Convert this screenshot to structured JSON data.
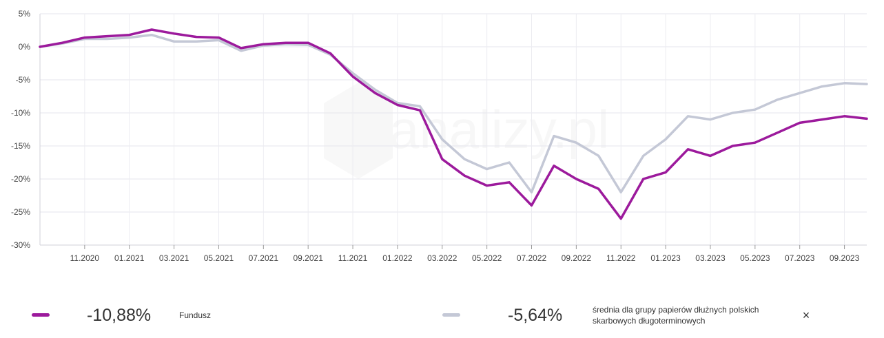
{
  "chart_data": {
    "type": "line",
    "title": "",
    "xlabel": "",
    "ylabel": "",
    "ylim": [
      -30,
      5
    ],
    "y_ticks": [
      5,
      0,
      -5,
      -10,
      -15,
      -20,
      -25,
      -30
    ],
    "y_tick_labels": [
      "5%",
      "0%",
      "-5%",
      "-10%",
      "-15%",
      "-20%",
      "-25%",
      "-30%"
    ],
    "x_tick_labels": [
      "11.2020",
      "01.2021",
      "03.2021",
      "05.2021",
      "07.2021",
      "09.2021",
      "11.2021",
      "01.2022",
      "03.2022",
      "05.2022",
      "07.2022",
      "09.2022",
      "11.2022",
      "01.2023",
      "03.2023",
      "05.2023",
      "07.2023",
      "09.2023"
    ],
    "x_range_months": [
      "2020-09",
      "2023-10"
    ],
    "grid": true,
    "series": [
      {
        "name": "Fundusz",
        "color": "#9c1a9c",
        "points": [
          [
            "2020-09",
            0.0
          ],
          [
            "2020-10",
            0.6
          ],
          [
            "2020-11",
            1.4
          ],
          [
            "2020-12",
            1.6
          ],
          [
            "2021-01",
            1.8
          ],
          [
            "2021-02",
            2.6
          ],
          [
            "2021-03",
            2.0
          ],
          [
            "2021-04",
            1.5
          ],
          [
            "2021-05",
            1.4
          ],
          [
            "2021-06",
            -0.2
          ],
          [
            "2021-07",
            0.4
          ],
          [
            "2021-08",
            0.6
          ],
          [
            "2021-09",
            0.6
          ],
          [
            "2021-10",
            -1.0
          ],
          [
            "2021-11",
            -4.5
          ],
          [
            "2021-12",
            -7.0
          ],
          [
            "2022-01",
            -8.8
          ],
          [
            "2022-02",
            -9.6
          ],
          [
            "2022-03",
            -17.0
          ],
          [
            "2022-04",
            -19.5
          ],
          [
            "2022-05",
            -21.0
          ],
          [
            "2022-06",
            -20.5
          ],
          [
            "2022-07",
            -24.0
          ],
          [
            "2022-08",
            -18.0
          ],
          [
            "2022-09",
            -20.0
          ],
          [
            "2022-10",
            -21.5
          ],
          [
            "2022-11",
            -26.0
          ],
          [
            "2022-12",
            -20.0
          ],
          [
            "2023-01",
            -19.0
          ],
          [
            "2023-02",
            -15.5
          ],
          [
            "2023-03",
            -16.5
          ],
          [
            "2023-04",
            -15.0
          ],
          [
            "2023-05",
            -14.5
          ],
          [
            "2023-06",
            -13.0
          ],
          [
            "2023-07",
            -11.5
          ],
          [
            "2023-08",
            -11.0
          ],
          [
            "2023-09",
            -10.5
          ],
          [
            "2023-10",
            -10.88
          ]
        ]
      },
      {
        "name": "średnia dla grupy papierów dłużnych polskich skarbowych długoterminowych",
        "color": "#c4c8d6",
        "points": [
          [
            "2020-09",
            0.0
          ],
          [
            "2020-10",
            0.5
          ],
          [
            "2020-11",
            1.2
          ],
          [
            "2020-12",
            1.2
          ],
          [
            "2021-01",
            1.4
          ],
          [
            "2021-02",
            1.8
          ],
          [
            "2021-03",
            0.8
          ],
          [
            "2021-04",
            0.8
          ],
          [
            "2021-05",
            1.0
          ],
          [
            "2021-06",
            -0.6
          ],
          [
            "2021-07",
            0.2
          ],
          [
            "2021-08",
            0.4
          ],
          [
            "2021-09",
            0.3
          ],
          [
            "2021-10",
            -1.2
          ],
          [
            "2021-11",
            -4.0
          ],
          [
            "2021-12",
            -6.5
          ],
          [
            "2022-01",
            -8.5
          ],
          [
            "2022-02",
            -9.0
          ],
          [
            "2022-03",
            -14.0
          ],
          [
            "2022-04",
            -17.0
          ],
          [
            "2022-05",
            -18.5
          ],
          [
            "2022-06",
            -17.5
          ],
          [
            "2022-07",
            -22.0
          ],
          [
            "2022-08",
            -13.5
          ],
          [
            "2022-09",
            -14.5
          ],
          [
            "2022-10",
            -16.5
          ],
          [
            "2022-11",
            -22.0
          ],
          [
            "2022-12",
            -16.5
          ],
          [
            "2023-01",
            -14.0
          ],
          [
            "2023-02",
            -10.5
          ],
          [
            "2023-03",
            -11.0
          ],
          [
            "2023-04",
            -10.0
          ],
          [
            "2023-05",
            -9.5
          ],
          [
            "2023-06",
            -8.0
          ],
          [
            "2023-07",
            -7.0
          ],
          [
            "2023-08",
            -6.0
          ],
          [
            "2023-09",
            -5.5
          ],
          [
            "2023-10",
            -5.64
          ]
        ]
      }
    ]
  },
  "watermark": "analizy.pl",
  "legend": {
    "fund": {
      "value": "-10,88%",
      "label": "Fundusz",
      "color": "#9c1a9c"
    },
    "avg": {
      "value": "-5,64%",
      "label_line1": "średnia dla grupy papierów dłużnych polskich",
      "label_line2": "skarbowych długoterminowych",
      "color": "#c4c8d6"
    },
    "close_symbol": "×"
  }
}
